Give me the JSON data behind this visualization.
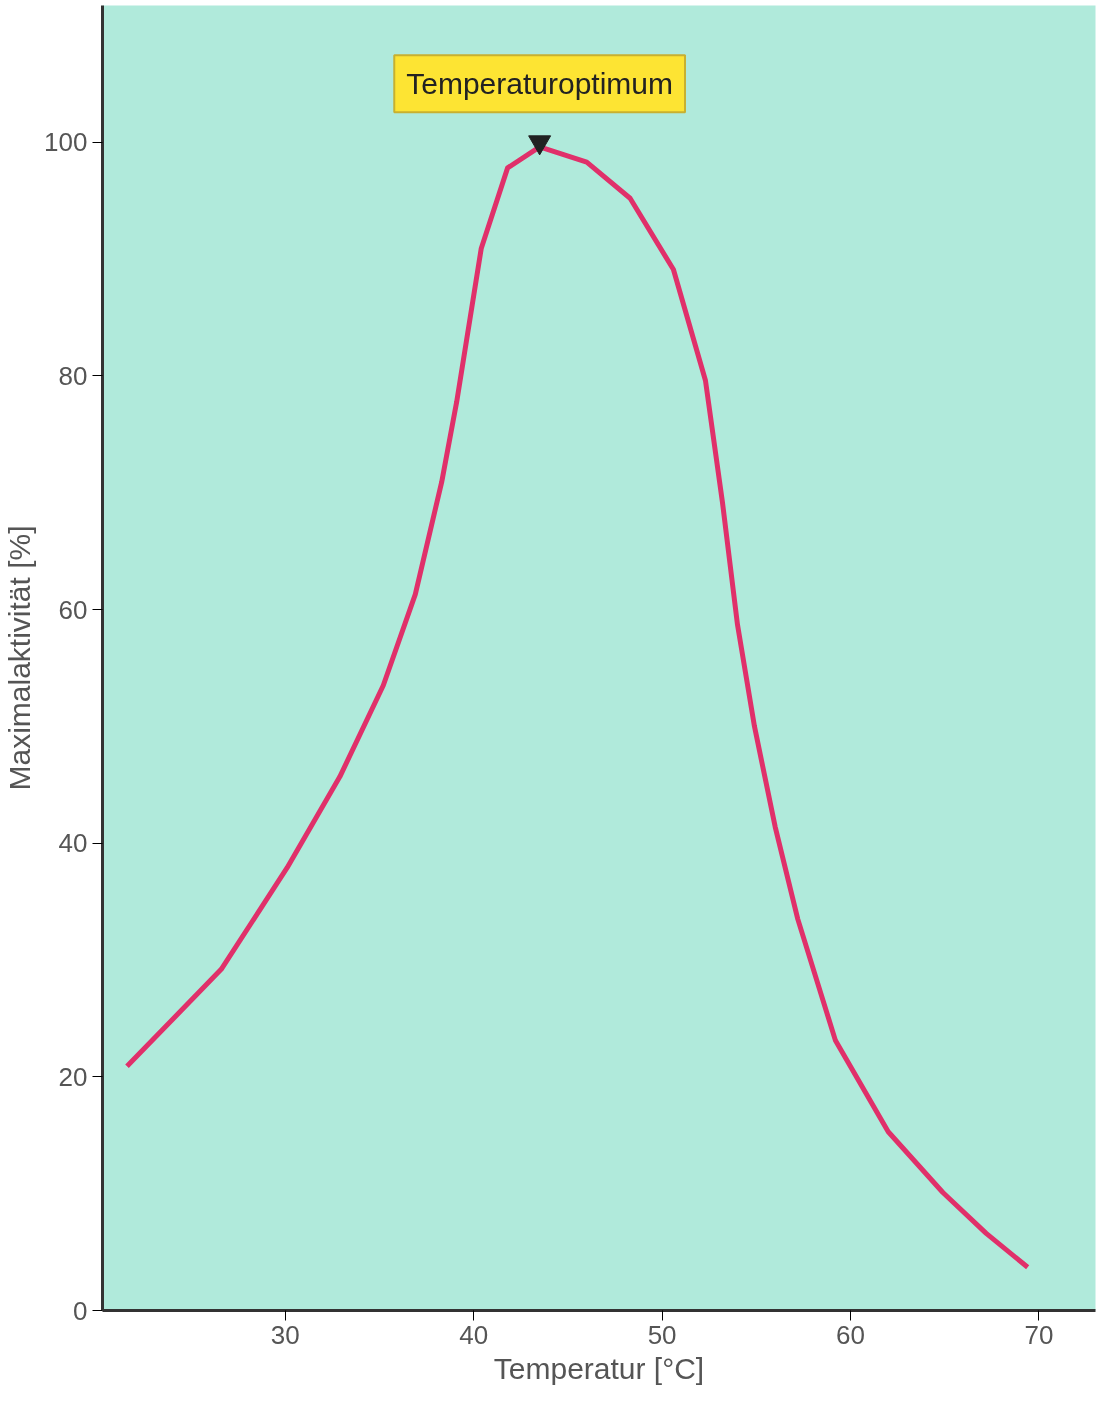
{
  "chart_data": {
    "type": "line",
    "xlabel": "Temperatur [°C]",
    "ylabel": "Maximalaktivität [%]",
    "x": [
      21.6,
      26.6,
      30.1,
      32.9,
      35.2,
      36.9,
      38.3,
      39.1,
      40.4,
      41.8,
      43.5,
      46.0,
      48.3,
      50.6,
      52.3,
      53.2,
      54.0,
      54.9,
      56.0,
      57.2,
      59.2,
      62.0,
      64.9,
      67.2,
      69.4
    ],
    "series": [
      {
        "color": "#e0306a",
        "values": [
          20.9,
          29.2,
          37.9,
          45.7,
          53.5,
          61.3,
          70.9,
          77.8,
          90.9,
          97.8,
          99.6,
          98.3,
          95.2,
          89.1,
          79.6,
          69.2,
          58.7,
          50.0,
          41.4,
          33.5,
          23.1,
          15.3,
          10.1,
          6.6,
          3.7
        ]
      }
    ],
    "xlim": [
      20.3,
      73
    ],
    "ylim": [
      0,
      111.7
    ],
    "xticks": [
      30,
      40,
      50,
      60,
      70
    ],
    "yticks": [
      0,
      20,
      40,
      60,
      80,
      100
    ],
    "annotations": [
      {
        "text": "Temperaturoptimum",
        "x": 43.5,
        "y": 100
      }
    ],
    "grid": false,
    "marker": "none",
    "line_style": "solid"
  }
}
